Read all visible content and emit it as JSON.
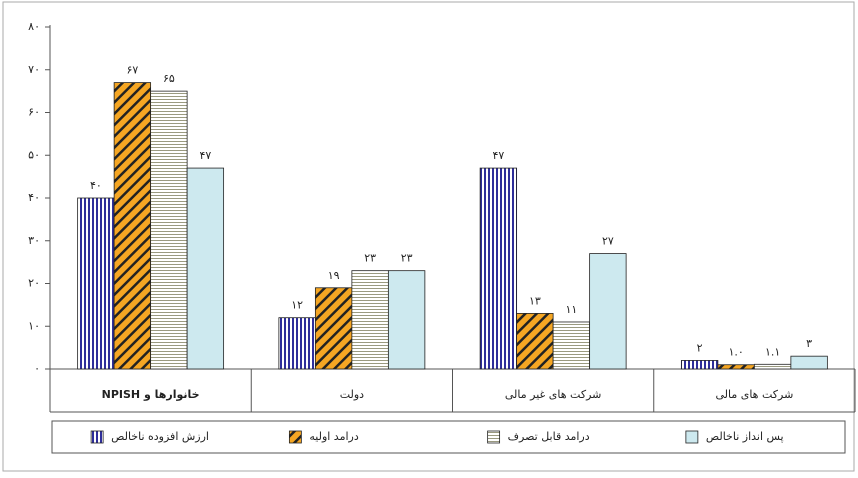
{
  "chart_data": {
    "type": "bar",
    "categories": [
      "خانوارها و NPISH",
      "دولت",
      "شرکت های غیر مالی",
      "شرکت های مالی"
    ],
    "series": [
      {
        "name": "ارزش افزوده ناخالص",
        "color": "#2e2e9a",
        "pattern": "vertical",
        "values": [
          40,
          12,
          47,
          2
        ],
        "value_labels": [
          "۴۰",
          "۱۲",
          "۴۷",
          "۲"
        ]
      },
      {
        "name": "درامد اولیه",
        "color": "#f5a623",
        "pattern": "diagonal",
        "values": [
          67,
          19,
          13,
          1.0
        ],
        "value_labels": [
          "۶۷",
          "۱۹",
          "۱۳",
          "۱.۰"
        ]
      },
      {
        "name": "درامد قابل تصرف",
        "color": "#9a9a80",
        "pattern": "horizontal",
        "values": [
          65,
          23,
          11,
          1.1
        ],
        "value_labels": [
          "۶۵",
          "۲۳",
          "۱۱",
          "۱.۱"
        ]
      },
      {
        "name": "پس انداز ناخالص",
        "color": "#cde9ef",
        "pattern": "solid",
        "values": [
          47,
          23,
          27,
          3
        ],
        "value_labels": [
          "۴۷",
          "۲۳",
          "۲۷",
          "۳"
        ]
      }
    ],
    "ylim": [
      0,
      80
    ],
    "yticks": [
      {
        "value": 0,
        "label": "۰"
      },
      {
        "value": 10,
        "label": "۱۰"
      },
      {
        "value": 20,
        "label": "۲۰"
      },
      {
        "value": 30,
        "label": "۳۰"
      },
      {
        "value": 40,
        "label": "۴۰"
      },
      {
        "value": 50,
        "label": "۵۰"
      },
      {
        "value": 60,
        "label": "۶۰"
      },
      {
        "value": 70,
        "label": "۷۰"
      },
      {
        "value": 80,
        "label": "۸۰"
      }
    ],
    "grid": false,
    "legend": "bottom"
  }
}
